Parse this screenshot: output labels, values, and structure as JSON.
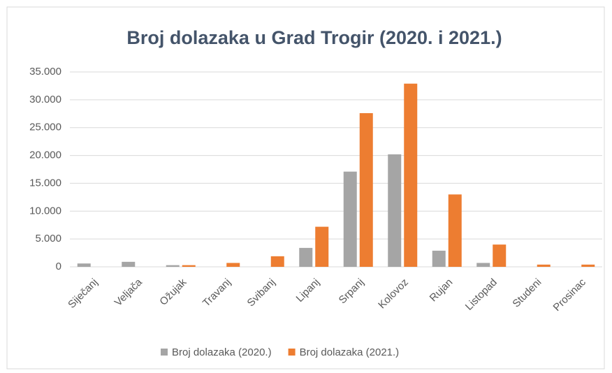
{
  "chart_data": {
    "type": "bar",
    "title": "Broj dolazaka u Grad Trogir (2020. i 2021.)",
    "categories": [
      "Siječanj",
      "Veljača",
      "Ožujak",
      "Travanj",
      "Svibanj",
      "Lipanj",
      "Srpanj",
      "Kolovoz",
      "Rujan",
      "Listopad",
      "Studeni",
      "Prosinac"
    ],
    "series": [
      {
        "name": "Broj dolazaka (2020.)",
        "color": "#a5a5a5",
        "values": [
          600,
          900,
          300,
          0,
          0,
          3400,
          17100,
          20200,
          2900,
          700,
          0,
          0
        ]
      },
      {
        "name": "Broj dolazaka (2021.)",
        "color": "#ed7d31",
        "values": [
          0,
          0,
          300,
          700,
          1900,
          7200,
          27600,
          32900,
          13000,
          4000,
          400,
          400
        ]
      }
    ],
    "ylim": [
      0,
      35000
    ],
    "yticks": [
      0,
      {
        "value": 5000,
        "label": "5.000"
      },
      {
        "value": 10000,
        "label": "10.000"
      },
      {
        "value": 15000,
        "label": "15.000"
      },
      {
        "value": 20000,
        "label": "20.000"
      },
      {
        "value": 25000,
        "label": "25.000"
      },
      {
        "value": 30000,
        "label": "30.000"
      },
      {
        "value": 35000,
        "label": "35.000"
      }
    ],
    "grid": true,
    "legend": "bottom"
  }
}
